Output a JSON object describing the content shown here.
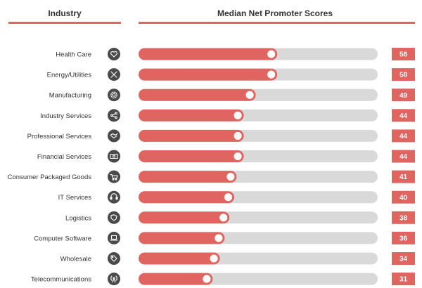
{
  "header": {
    "industry_label": "Industry",
    "scores_label": "Median Net Promoter Scores"
  },
  "colors": {
    "accent": "#e06460",
    "track": "#d9d9d9",
    "icon_bg": "#4a4a4a"
  },
  "chart_data": {
    "type": "bar",
    "orientation": "horizontal",
    "title": "Median Net Promoter Scores",
    "categories": [
      "Health Care",
      "Energy/Utilities",
      "Manufacturing",
      "Industry Services",
      "Professional Services",
      "Financial Services",
      "Consumer Packaged Goods",
      "IT Services",
      "Logistics",
      "Computer Software",
      "Wholesale",
      "Telecommunications"
    ],
    "values": [
      58,
      58,
      49,
      44,
      44,
      44,
      41,
      40,
      38,
      36,
      34,
      31
    ],
    "xlim": [
      0,
      100
    ],
    "icons": [
      "heart-medical-icon",
      "tools-icon",
      "gear-icon",
      "share-network-icon",
      "handshake-icon",
      "money-bill-icon",
      "shopping-cart-icon",
      "headset-icon",
      "map-region-icon",
      "laptop-icon",
      "price-tag-icon",
      "antenna-icon"
    ],
    "grid": false,
    "legend": "none"
  }
}
